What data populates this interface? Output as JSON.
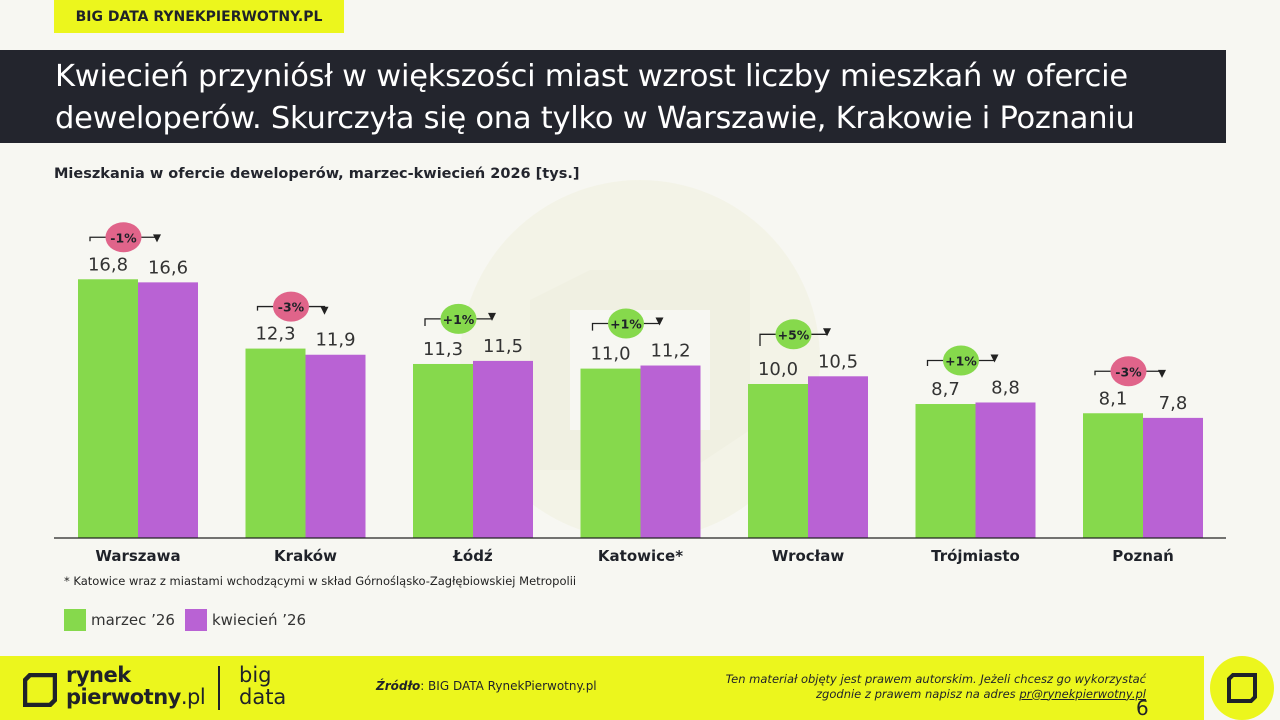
{
  "header": {
    "brand_tag": "BIG DATA RYNEKPIERWOTNY.PL",
    "title": "Kwiecień przyniósł w większości miast wzrost liczby mieszkań w ofercie deweloperów. Skurczyła się ona tylko w Warszawie, Krakowie i Poznaniu"
  },
  "chart_data": {
    "type": "bar",
    "title": "Mieszkania w ofercie deweloperów, marzec-kwiecień 2026 [tys.]",
    "categories": [
      "Warszawa",
      "Kraków",
      "Łódź",
      "Katowice*",
      "Wrocław",
      "Trójmiasto",
      "Poznań"
    ],
    "series": [
      {
        "name": "marzec ’26",
        "color": "#86d94c",
        "values": [
          16.8,
          12.3,
          11.3,
          11.0,
          10.0,
          8.7,
          8.1
        ],
        "labels": [
          "16,8",
          "12,3",
          "11,3",
          "11,0",
          "10,0",
          "8,7",
          "8,1"
        ]
      },
      {
        "name": "kwiecień ’26",
        "color": "#b962d4",
        "values": [
          16.6,
          11.9,
          11.5,
          11.2,
          10.5,
          8.8,
          7.8
        ],
        "labels": [
          "16,6",
          "11,9",
          "11,5",
          "11,2",
          "10,5",
          "8,8",
          "7,8"
        ]
      }
    ],
    "changes": [
      {
        "label": "-1%",
        "direction": "down"
      },
      {
        "label": "-3%",
        "direction": "down"
      },
      {
        "label": "+1%",
        "direction": "up"
      },
      {
        "label": "+1%",
        "direction": "up"
      },
      {
        "label": "+5%",
        "direction": "up"
      },
      {
        "label": "+1%",
        "direction": "up"
      },
      {
        "label": "-3%",
        "direction": "down"
      }
    ],
    "change_colors": {
      "up": "#86d94c",
      "down": "#e0648a"
    },
    "ylim": [
      0,
      20
    ],
    "grid": false,
    "legend": "bottom-left"
  },
  "footnote": "* Katowice wraz z miastami wchodzącymi w skład Górnośląsko-Zagłębiowskiej Metropolii",
  "footer": {
    "logo_line1": "rynek",
    "logo_line2": "pierwotny",
    "logo_suffix": ".pl",
    "big_line1": "big",
    "big_line2": "data",
    "source_label": "Źródło",
    "source_text": ": BIG DATA RynekPierwotny.pl",
    "rights_line1": "Ten materiał objęty jest prawem autorskim. Jeżeli chcesz go wykorzystać",
    "rights_line2": "zgodnie z prawem napisz na adres ",
    "rights_email": "pr@rynekpierwotny.pl",
    "page_number": "6"
  },
  "colors": {
    "accent": "#ecf61d",
    "dark": "#23252d"
  }
}
